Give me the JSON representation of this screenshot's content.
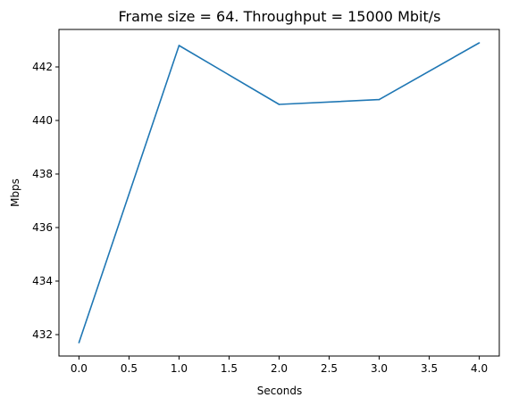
{
  "chart_data": {
    "type": "line",
    "title": "Frame size = 64. Throughput = 15000 Mbit/s",
    "xlabel": "Seconds",
    "ylabel": "Mbps",
    "x": [
      0,
      1,
      2,
      3,
      4
    ],
    "series": [
      {
        "values": [
          431.7,
          442.8,
          440.6,
          440.78,
          442.9
        ],
        "color": "#1f77b4"
      }
    ],
    "xlim": [
      -0.2,
      4.2
    ],
    "ylim": [
      431.2,
      443.4
    ],
    "xticks": [
      0,
      0.5,
      1,
      1.5,
      2,
      2.5,
      3,
      3.5,
      4
    ],
    "xtick_labels": [
      "0.0",
      "0.5",
      "1.0",
      "1.5",
      "2.0",
      "2.5",
      "3.0",
      "3.5",
      "4.0"
    ],
    "yticks": [
      432,
      434,
      436,
      438,
      440,
      442
    ],
    "ytick_labels": [
      "432",
      "434",
      "436",
      "438",
      "440",
      "442"
    ],
    "grid": false
  }
}
